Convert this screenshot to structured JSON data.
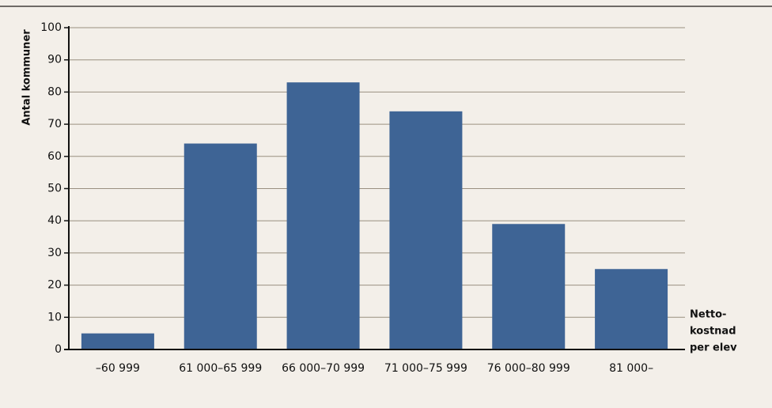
{
  "chart_data": {
    "type": "bar",
    "ylabel": "Antal kommuner",
    "xlabel_lines": [
      "Netto-",
      "kostnad",
      "per elev"
    ],
    "categories": [
      "–60 999",
      "61 000–65 999",
      "66 000–70 999",
      "71 000–75 999",
      "76 000–80 999",
      "81 000–"
    ],
    "values": [
      5,
      64,
      83,
      74,
      39,
      25
    ],
    "color": "#3e6495",
    "ylim": [
      0,
      100
    ],
    "yticks": [
      0,
      10,
      20,
      30,
      40,
      50,
      60,
      70,
      80,
      90,
      100
    ],
    "grid": true
  }
}
